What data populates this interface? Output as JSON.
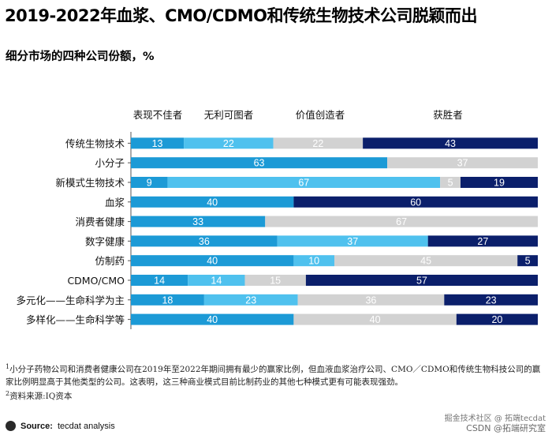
{
  "title": "2019-2022年血浆、CMO/CDMO和传统生物技术公司脱颖而出",
  "subtitle": "细分市场的四种公司份额，%",
  "chart_data": {
    "type": "bar",
    "orientation": "horizontal",
    "stacked": true,
    "normalized_to": 100,
    "categories": [
      "传统生物技术",
      "小分子",
      "新模式生物技术",
      "血浆",
      "消费者健康",
      "数字健康",
      "仿制药",
      "CDMO/CMO",
      "多元化——生命科学为主",
      "多样化——生命科学等"
    ],
    "series": [
      {
        "name": "表现不佳者",
        "color": "#1c9ad6",
        "values": [
          13,
          63,
          9,
          40,
          33,
          36,
          40,
          14,
          18,
          40
        ]
      },
      {
        "name": "无利可图者",
        "color": "#4fc1ee",
        "values": [
          22,
          0,
          67,
          0,
          0,
          37,
          10,
          14,
          23,
          0
        ]
      },
      {
        "name": "价值创造者",
        "color": "#d2d2d2",
        "values": [
          22,
          37,
          5,
          0,
          67,
          0,
          45,
          15,
          36,
          40
        ]
      },
      {
        "name": "获胜者",
        "color": "#0b1f6b",
        "values": [
          43,
          0,
          19,
          60,
          0,
          27,
          5,
          57,
          23,
          20
        ]
      }
    ],
    "xlim": [
      0,
      100
    ],
    "label_color": "#ffffff",
    "legend_position": "top"
  },
  "footnote": {
    "marker": "1",
    "line1": "小分子药物公司和消费者健康公司在2019年至2022年期间拥有最少的赢家比例，但血液血浆治疗公司、CMO／CDMO和传统生物科技公司的赢",
    "line2": "家比例明显高于其他类型的公司。这表明，这三种商业模式目前比制药业的其他七种模式更有可能表现强劲。"
  },
  "source_note": {
    "marker": "2",
    "text": "资料来源:IQ资本"
  },
  "source": {
    "label": "Source:",
    "text": "tecdat analysis",
    "logo_text": "tecdat"
  },
  "watermark": {
    "line1": "掘金技术社区 @ 拓端tecdat",
    "line2": "CSDN @拓端研究室"
  }
}
